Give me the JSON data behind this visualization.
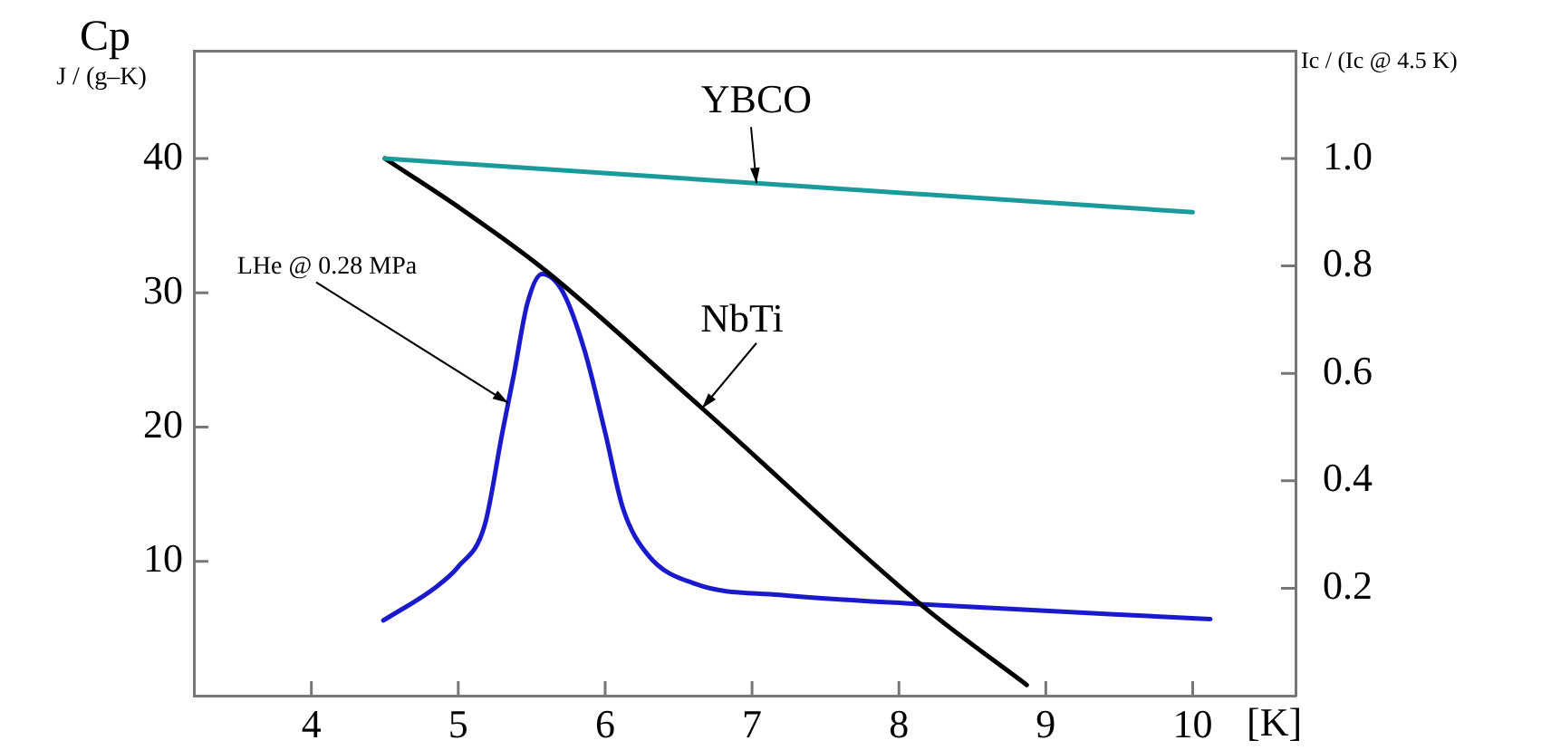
{
  "chart_data": {
    "type": "line",
    "xlabel": "[K]",
    "ylabel": "Cp\nJ / (g–K)",
    "y2label": "Ic / (Ic @ 4.5 K)",
    "xlim": [
      3.2,
      10.7
    ],
    "xticks": [
      4,
      5,
      6,
      7,
      8,
      9,
      10
    ],
    "ylim": [
      0,
      48
    ],
    "yticks": [
      10,
      20,
      30,
      40
    ],
    "y2lim": [
      0,
      1.2
    ],
    "y2ticks": [
      {
        "value": 0.2,
        "label": "0.2"
      },
      {
        "value": 0.4,
        "label": "0.4"
      },
      {
        "value": 0.6,
        "label": "0.6"
      },
      {
        "value": 0.8,
        "label": "0.8"
      },
      {
        "value": 1,
        "label": "1.0"
      }
    ],
    "grid": false,
    "legend": false,
    "marker": "none",
    "line_style": "solid",
    "series": [
      {
        "name": "YBCO",
        "color": "#1a9a9a",
        "axis": "y2",
        "x": [
          4.5,
          10
        ],
        "values": [
          1.0,
          0.9
        ]
      },
      {
        "name": "NbTi",
        "color": "#000000",
        "axis": "y2",
        "x": [
          4.5,
          5.0,
          5.6,
          6.66,
          8.17,
          8.87
        ],
        "values": [
          1.0,
          0.91,
          0.79,
          0.535,
          0.165,
          0.02
        ]
      },
      {
        "name": "LHe @ 0.28 MPa",
        "color": "#1a1acc",
        "axis": "y",
        "x": [
          4.49,
          4.85,
          5.0,
          5.18,
          5.3,
          5.38,
          5.47,
          5.57,
          5.71,
          5.86,
          6.0,
          6.12,
          6.29,
          6.62,
          7.19,
          8.17,
          10.12
        ],
        "values": [
          5.6,
          8.1,
          9.6,
          12.7,
          19.6,
          24.0,
          29.2,
          31.4,
          30.1,
          25.7,
          19.6,
          14.0,
          10.5,
          8.3,
          7.5,
          6.8,
          5.7
        ]
      }
    ]
  }
}
